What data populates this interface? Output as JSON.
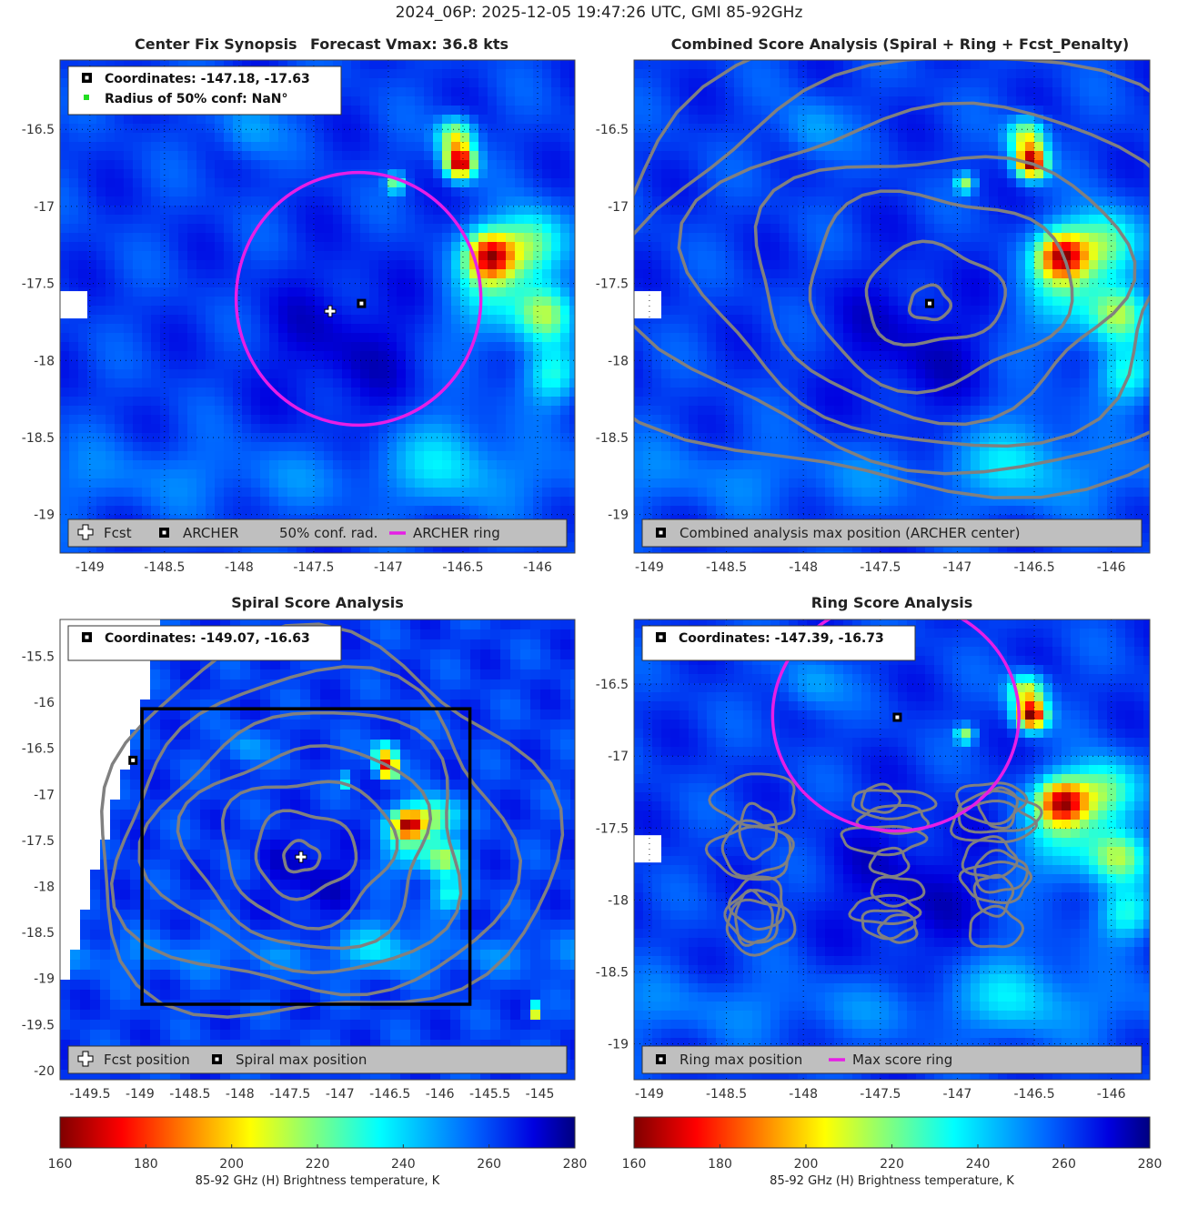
{
  "figure_title": "2024_06P: 2025-12-05 19:47:26 UTC, GMI 85-92GHz",
  "colors": {
    "ring": "#e61ee6",
    "contour": "#808080",
    "legend_bg": "#bfbfbf",
    "grid": "#000000"
  },
  "chart_data": [
    {
      "id": "synopsis",
      "type": "heatmap",
      "title_left": "Center Fix Synopsis",
      "title_right": "Forecast Vmax: 36.8 kts",
      "xlim": [
        -149.2,
        -145.75
      ],
      "ylim": [
        -19.25,
        -16.05
      ],
      "xticks": [
        "-149",
        "-148.5",
        "-148",
        "-147.5",
        "-147",
        "-146.5",
        "-146"
      ],
      "yticks": [
        "-16.5",
        "-17",
        "-17.5",
        "-18",
        "-18.5",
        "-19"
      ],
      "grid": true,
      "info_box": [
        "Coordinates: -147.18, -17.63",
        "Radius of 50% conf: NaN°"
      ],
      "legend": [
        "Fcst",
        "ARCHER",
        "50% conf. rad.",
        "ARCHER ring"
      ],
      "forecast_position": [
        -147.39,
        -17.68
      ],
      "archer_center": [
        -147.18,
        -17.63
      ],
      "archer_ring": {
        "center": [
          -147.2,
          -17.6
        ],
        "radius_deg": 0.82
      }
    },
    {
      "id": "combined",
      "type": "heatmap",
      "title": "Combined Score Analysis (Spiral + Ring + Fcst_Penalty)",
      "xlim": [
        -149.1,
        -145.75
      ],
      "ylim": [
        -19.25,
        -16.05
      ],
      "xticks": [
        "-149",
        "-148.5",
        "-148",
        "-147.5",
        "-147",
        "-146.5",
        "-146"
      ],
      "yticks": [
        "-16.5",
        "-17",
        "-17.5",
        "-18",
        "-18.5",
        "-19"
      ],
      "grid": true,
      "legend": [
        "Combined analysis max position (ARCHER center)"
      ],
      "max_position": [
        -147.18,
        -17.63
      ]
    },
    {
      "id": "spiral",
      "type": "heatmap",
      "title": "Spiral Score Analysis",
      "xlim": [
        -149.8,
        -144.65
      ],
      "ylim": [
        -20.1,
        -15.1
      ],
      "xticks": [
        "-149.5",
        "-149",
        "-148.5",
        "-148",
        "-147.5",
        "-147",
        "-146.5",
        "-146",
        "-145.5",
        "-145"
      ],
      "yticks": [
        "-15.5",
        "-16",
        "-16.5",
        "-17",
        "-17.5",
        "-18",
        "-18.5",
        "-19",
        "-19.5",
        "-20"
      ],
      "grid": false,
      "info_box": [
        "Coordinates: -149.07, -16.63"
      ],
      "legend": [
        "Fcst position",
        "Spiral max position"
      ],
      "forecast_position": [
        -147.39,
        -17.68
      ],
      "spiral_max_position": [
        -149.07,
        -16.63
      ],
      "search_box": {
        "lon": [
          -148.98,
          -145.7
        ],
        "lat": [
          -19.28,
          -16.07
        ]
      }
    },
    {
      "id": "ring",
      "type": "heatmap",
      "title": "Ring Score Analysis",
      "xlim": [
        -149.1,
        -145.75
      ],
      "ylim": [
        -19.25,
        -16.05
      ],
      "xticks": [
        "-149",
        "-148.5",
        "-148",
        "-147.5",
        "-147",
        "-146.5",
        "-146"
      ],
      "yticks": [
        "-16.5",
        "-17",
        "-17.5",
        "-18",
        "-18.5",
        "-19"
      ],
      "grid": true,
      "info_box": [
        "Coordinates: -147.39, -16.73"
      ],
      "legend": [
        "Ring max position",
        "Max score ring"
      ],
      "ring_max_position": [
        -147.39,
        -16.73
      ],
      "max_score_ring": {
        "center": [
          -147.4,
          -16.72
        ],
        "radius_deg": 0.8
      }
    }
  ],
  "colorbar": {
    "range": [
      160,
      280
    ],
    "ticks": [
      "160",
      "180",
      "200",
      "220",
      "240",
      "260",
      "280"
    ],
    "label": "85-92 GHz (H) Brightness temperature, K"
  }
}
